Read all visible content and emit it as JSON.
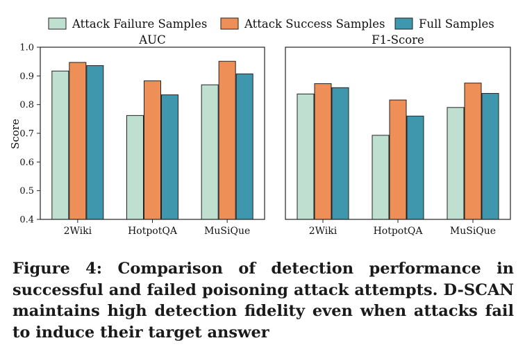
{
  "legend": [
    "Attack Failure Samples",
    "Attack Success Samples",
    "Full Samples"
  ],
  "colors": {
    "failure": "#bfdfd1",
    "success": "#ef8f58",
    "full": "#3f97ad",
    "edge": "#222222"
  },
  "ylabel": "Score",
  "chart_data": [
    {
      "type": "bar",
      "title": "AUC",
      "categories": [
        "2Wiki",
        "HotpotQA",
        "MuSiQue"
      ],
      "series": [
        {
          "name": "Attack Failure Samples",
          "values": [
            0.917,
            0.762,
            0.869
          ]
        },
        {
          "name": "Attack Success Samples",
          "values": [
            0.947,
            0.883,
            0.951
          ]
        },
        {
          "name": "Full Samples",
          "values": [
            0.936,
            0.834,
            0.907
          ]
        }
      ],
      "ylabel": "Score",
      "ylim": [
        0.4,
        1.0
      ],
      "yticks": [
        "0.4",
        "0.5",
        "0.6",
        "0.7",
        "0.8",
        "0.9",
        "1.0"
      ],
      "grid": false,
      "legend_position": "top"
    },
    {
      "type": "bar",
      "title": "F1-Score",
      "categories": [
        "2Wiki",
        "HotpotQA",
        "MuSiQue"
      ],
      "series": [
        {
          "name": "Attack Failure Samples",
          "values": [
            0.837,
            0.693,
            0.79
          ]
        },
        {
          "name": "Attack Success Samples",
          "values": [
            0.873,
            0.816,
            0.875
          ]
        },
        {
          "name": "Full Samples",
          "values": [
            0.859,
            0.76,
            0.839
          ]
        }
      ],
      "ylim": [
        0.4,
        1.0
      ],
      "grid": false,
      "legend_position": "top"
    }
  ],
  "caption": "Figure 4: Comparison of detection performance in successful and failed poisoning attack attempts. D-SCAN maintains high detection fidelity even when attacks fail to induce their target answer"
}
